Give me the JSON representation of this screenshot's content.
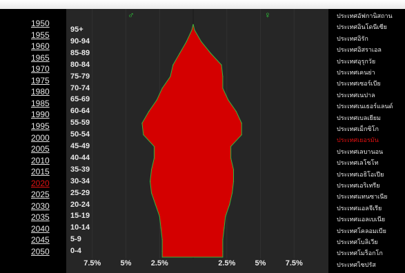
{
  "male_symbol": "♂",
  "female_symbol": "♀",
  "years": [
    "1950",
    "1955",
    "1960",
    "1965",
    "1970",
    "1975",
    "1980",
    "1985",
    "1990",
    "1995",
    "2000",
    "2005",
    "2010",
    "2015",
    "2020",
    "2025",
    "2030",
    "2035",
    "2040",
    "2045",
    "2050"
  ],
  "selected_year": "2020",
  "age_groups": [
    "95+",
    "90-94",
    "85-89",
    "80-84",
    "75-79",
    "70-74",
    "65-69",
    "60-64",
    "55-59",
    "50-54",
    "45-49",
    "40-44",
    "35-39",
    "30-34",
    "25-29",
    "20-24",
    "15-19",
    "10-14",
    "5-9",
    "0-4"
  ],
  "axis_labels": [
    "7.5%",
    "5%",
    "2.5%",
    "2.5%",
    "5%",
    "7.5%"
  ],
  "countries": [
    "ประเทศอัฟกานิสถาน",
    "ประเทศอินโดนีเซีย",
    "ประเทศอิรัก",
    "ประเทศอิสราเอล",
    "ประเทศอุรุกวัย",
    "ประเทศเคนย่า",
    "ประเทศเซอร์เบีย",
    "ประเทศเนปาล",
    "ประเทศเนเธอร์แลนด์",
    "ประเทศเบลเยียม",
    "ประเทศเม็กซิโก",
    "ประเทศเยอรมัน",
    "ประเทศเลบานอน",
    "ประเทศเลโซโท",
    "ประเทศเอธิโอเปีย",
    "ประเทศเอริเทรีย",
    "ประเทศแทนซาเนีย",
    "ประเทศแอลจีเรีย",
    "ประเทศแอลเบเนีย",
    "ประเทศโคลอมเบีย",
    "ประเทศโบลิเวีย",
    "ประเทศโมร็อกโก",
    "ประเทศไซปรัส"
  ],
  "selected_country": "ประเทศเยอรมัน",
  "colors": {
    "bars": "#d40000",
    "outline": "#3cb43c",
    "sex_symbols": "#2fd23a",
    "selected": "#e01010"
  },
  "chart_data": {
    "type": "area",
    "orientation": "population-pyramid",
    "categories": [
      "0-4",
      "5-9",
      "10-14",
      "15-19",
      "20-24",
      "25-29",
      "30-34",
      "35-39",
      "40-44",
      "45-49",
      "50-54",
      "55-59",
      "60-64",
      "65-69",
      "70-74",
      "75-79",
      "80-84",
      "85-89",
      "90-94",
      "95+"
    ],
    "series": [
      {
        "name": "♂",
        "values": [
          -2.3,
          -2.3,
          -2.4,
          -2.5,
          -2.8,
          -3.1,
          -3.2,
          -3.1,
          -2.9,
          -2.9,
          -3.7,
          -3.8,
          -3.3,
          -2.7,
          -2.3,
          -1.7,
          -1.5,
          -1.0,
          -0.5,
          -0.1
        ]
      },
      {
        "name": "♀",
        "values": [
          2.2,
          2.2,
          2.3,
          2.4,
          2.7,
          2.9,
          3.0,
          3.0,
          2.8,
          2.8,
          3.6,
          3.6,
          3.2,
          2.6,
          2.2,
          2.2,
          2.1,
          1.3,
          0.6,
          0.1
        ]
      }
    ],
    "xlim": [
      -8.5,
      8.5
    ],
    "tick_labels": [
      "7.5%",
      "5%",
      "2.5%",
      "2.5%",
      "5%",
      "7.5%"
    ]
  }
}
